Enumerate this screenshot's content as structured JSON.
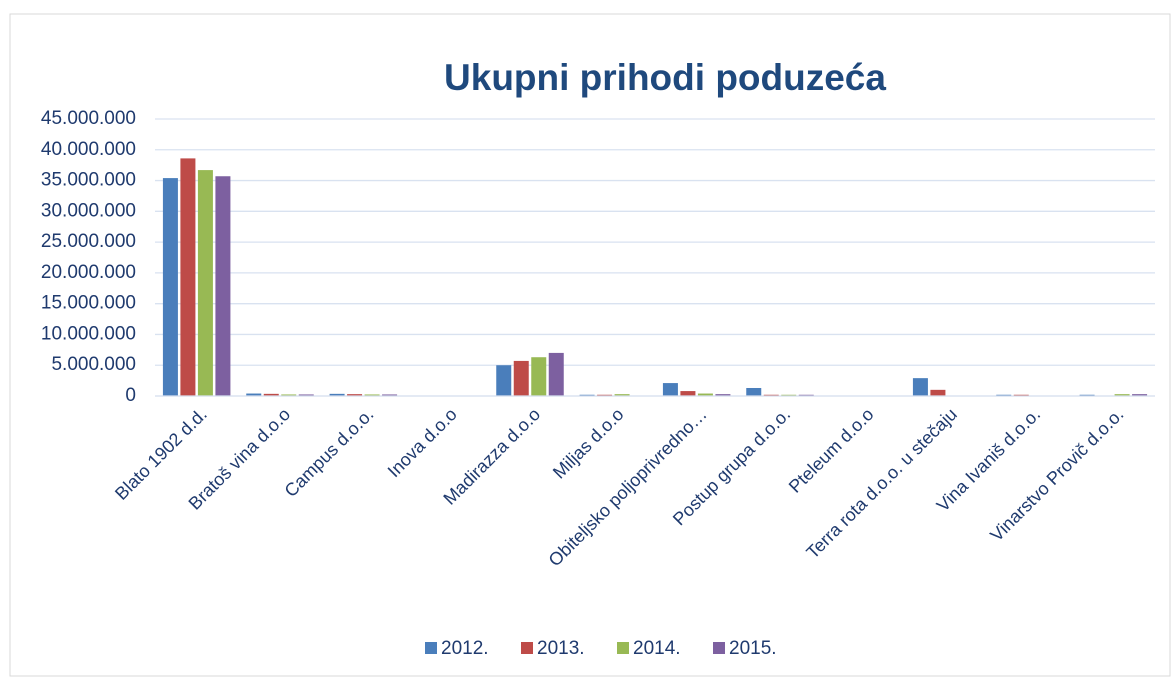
{
  "chart_data": {
    "type": "bar",
    "title": "Ukupni prihodi poduzeća",
    "categories": [
      "Blato 1902 d.d.",
      "Bratoš vina d.o.o",
      "Campus d.o.o.",
      "Inova d.o.o",
      "Madirazza d.o.o",
      "Miljas d.o.o",
      "Obiteljsko poljoprivredno…",
      "Postup grupa d.o.o.",
      "Pteleum d.o.o",
      "Terra rota d.o.o. u stečaju",
      "Vina Ivaniš d.o.o.",
      "Vinarstvo Provič d.o.o."
    ],
    "series": [
      {
        "name": "2012.",
        "color": "#4a7ebb",
        "values": [
          35400000,
          400000,
          350000,
          0,
          5000000,
          200000,
          2100000,
          1300000,
          0,
          2900000,
          200000,
          200000
        ]
      },
      {
        "name": "2013.",
        "color": "#be4b48",
        "values": [
          38600000,
          350000,
          300000,
          0,
          5700000,
          200000,
          800000,
          200000,
          0,
          1000000,
          200000,
          0
        ]
      },
      {
        "name": "2014.",
        "color": "#98b954",
        "values": [
          36700000,
          250000,
          250000,
          0,
          6300000,
          300000,
          400000,
          200000,
          0,
          0,
          0,
          300000
        ]
      },
      {
        "name": "2015.",
        "color": "#7d60a0",
        "values": [
          35700000,
          250000,
          250000,
          0,
          7000000,
          0,
          300000,
          200000,
          0,
          0,
          0,
          300000
        ]
      }
    ],
    "ylim": [
      0,
      45000000
    ],
    "yticks": [
      0,
      {
        "value": 5000000,
        "label": "5.000.000"
      },
      {
        "value": 10000000,
        "label": "10.000.000"
      },
      {
        "value": 15000000,
        "label": "15.000.000"
      },
      {
        "value": 20000000,
        "label": "20.000.000"
      },
      {
        "value": 25000000,
        "label": "25.000.000"
      },
      {
        "value": 30000000,
        "label": "30.000.000"
      },
      {
        "value": 35000000,
        "label": "35.000.000"
      },
      {
        "value": 40000000,
        "label": "40.000.000"
      },
      {
        "value": 45000000,
        "label": "45.000.000"
      }
    ],
    "grid": true,
    "legend": "bottom"
  }
}
